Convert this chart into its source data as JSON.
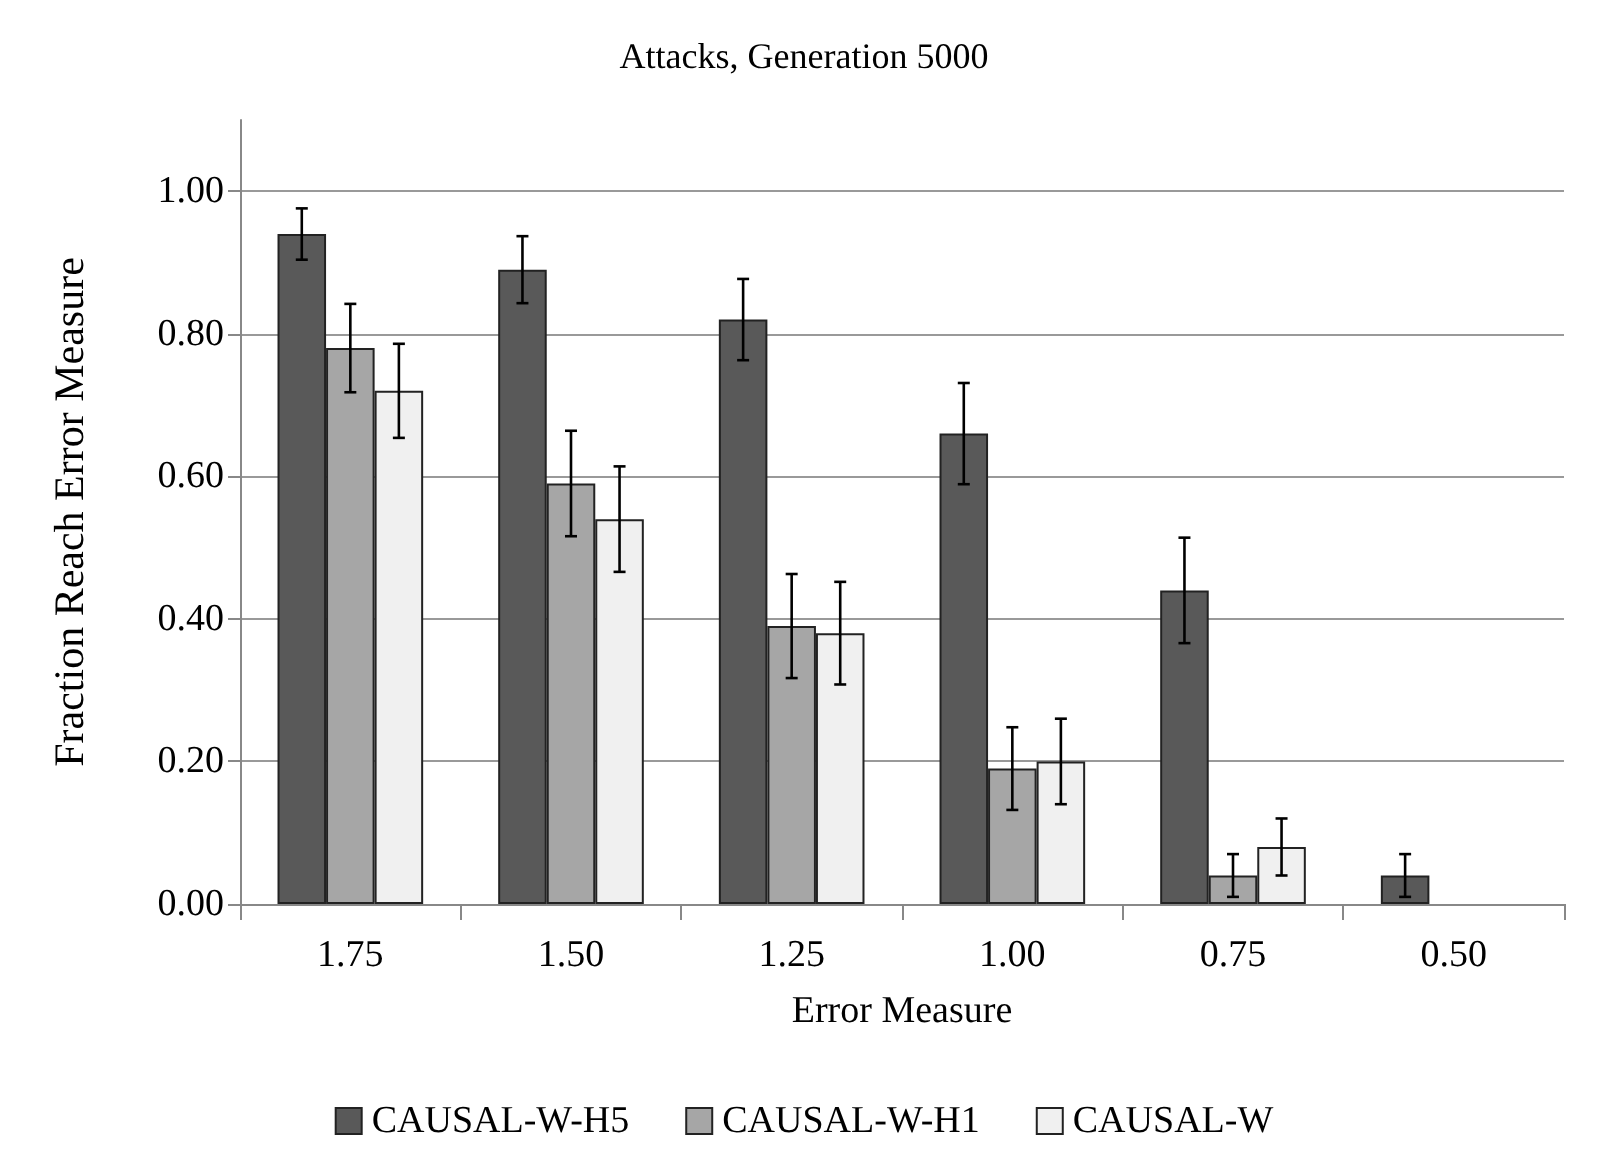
{
  "chart_data": {
    "type": "bar",
    "title": "Attacks, Generation 5000",
    "xlabel": "Error Measure",
    "ylabel": "Fraction Reach Error Measure",
    "categories": [
      "1.75",
      "1.50",
      "1.25",
      "1.00",
      "0.75",
      "0.50"
    ],
    "series": [
      {
        "name": "CAUSAL-W-H5",
        "color": "#595959",
        "values": [
          0.94,
          0.89,
          0.82,
          0.66,
          0.44,
          0.04
        ],
        "errors": [
          0.036,
          0.047,
          0.057,
          0.071,
          0.074,
          0.03
        ]
      },
      {
        "name": "CAUSAL-W-H1",
        "color": "#a6a6a6",
        "values": [
          0.78,
          0.59,
          0.39,
          0.19,
          0.04,
          null
        ],
        "errors": [
          0.062,
          0.074,
          0.073,
          0.058,
          0.03,
          null
        ]
      },
      {
        "name": "CAUSAL-W",
        "color": "#f0f0f0",
        "values": [
          0.72,
          0.54,
          0.38,
          0.2,
          0.08,
          null
        ],
        "errors": [
          0.066,
          0.074,
          0.072,
          0.06,
          0.04,
          null
        ]
      }
    ],
    "ylim": [
      0,
      1.1
    ],
    "yticks": [
      {
        "value": 0,
        "label": "0.00"
      },
      {
        "value": 0.2,
        "label": "0.20"
      },
      {
        "value": 0.4,
        "label": "0.40"
      },
      {
        "value": 0.6,
        "label": "0.60"
      },
      {
        "value": 0.8,
        "label": "0.80"
      },
      {
        "value": 1,
        "label": "1.00"
      }
    ],
    "grid": "y",
    "legend": "bottom"
  }
}
